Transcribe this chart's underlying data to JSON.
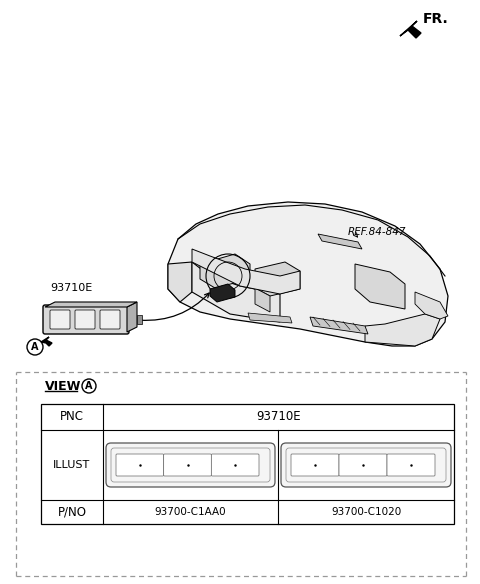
{
  "bg_color": "#ffffff",
  "fr_label": "FR.",
  "ref_label": "REF.84-847",
  "part_label": "93710E",
  "view_label": "VIEW",
  "pnc_label": "PNC",
  "pnc_value": "93710E",
  "illust_label": "ILLUST",
  "pno_label": "P/NO",
  "pno_values": [
    "93700-C1AA0",
    "93700-C1020"
  ],
  "dash_color": "#cccccc",
  "line_color": "#333333"
}
